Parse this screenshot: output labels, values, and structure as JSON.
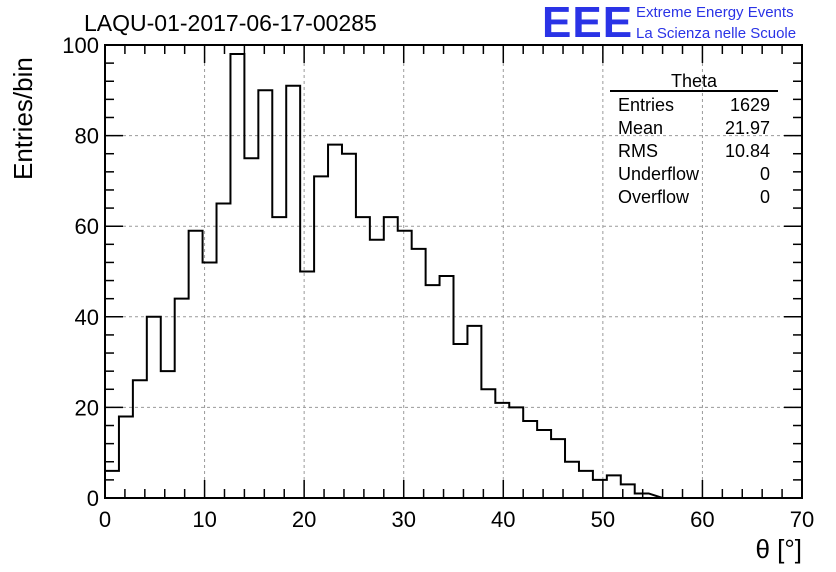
{
  "title": "LAQU-01-2017-06-17-00285",
  "logo": {
    "letters": "EEE",
    "line1": "Extreme Energy Events",
    "line2": "La Scienza nelle Scuole",
    "color": "#2a33e6"
  },
  "stats_box": {
    "name": "Theta",
    "rows": [
      {
        "label": "Entries",
        "value": "1629"
      },
      {
        "label": "Mean",
        "value": "21.97"
      },
      {
        "label": "RMS",
        "value": "10.84"
      },
      {
        "label": "Underflow",
        "value": "0"
      },
      {
        "label": "Overflow",
        "value": "0"
      }
    ]
  },
  "chart_data": {
    "type": "bar",
    "style": "step-histogram",
    "title": "LAQU-01-2017-06-17-00285",
    "xlabel": "θ [°]",
    "ylabel": "Entries/bin",
    "xlim": [
      0,
      70
    ],
    "ylim": [
      0,
      100
    ],
    "bin_width": 1.4,
    "x_ticks": [
      0,
      10,
      20,
      30,
      40,
      50,
      60,
      70
    ],
    "y_ticks": [
      0,
      20,
      40,
      60,
      80,
      100
    ],
    "grid": true,
    "bin_edges": [
      0,
      1.4,
      2.8,
      4.2,
      5.6,
      7.0,
      8.4,
      9.8,
      11.2,
      12.6,
      14.0,
      15.4,
      16.8,
      18.2,
      19.6,
      21.0,
      22.4,
      23.8,
      25.2,
      26.6,
      28.0,
      29.4,
      30.8,
      32.2,
      33.6,
      35.0,
      36.4,
      37.8,
      39.2,
      40.6,
      42.0,
      43.4,
      44.8,
      46.2,
      47.6,
      49.0,
      50.4,
      51.8,
      53.2,
      54.6
    ],
    "values": [
      6,
      18,
      26,
      40,
      28,
      44,
      59,
      52,
      65,
      98,
      75,
      90,
      62,
      91,
      50,
      71,
      78,
      76,
      62,
      57,
      62,
      59,
      55,
      47,
      49,
      34,
      38,
      24,
      21,
      20,
      17,
      15,
      13,
      8,
      6,
      4,
      5,
      3,
      1
    ]
  }
}
